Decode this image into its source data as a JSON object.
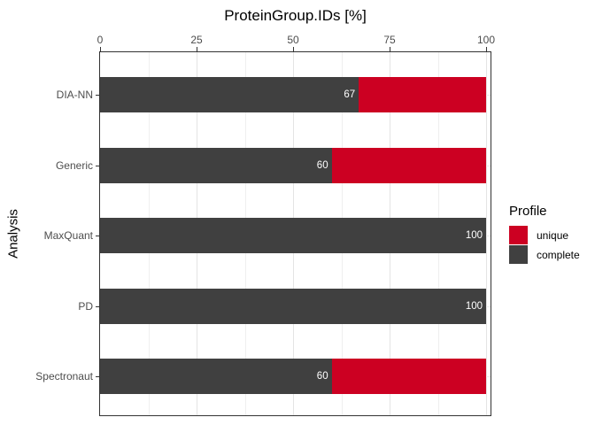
{
  "title": "ProteinGroup.IDs [%]",
  "y_axis_title": "Analysis",
  "legend": {
    "title": "Profile",
    "items": [
      {
        "label": "unique",
        "color": "#CC0022"
      },
      {
        "label": "complete",
        "color": "#404040"
      }
    ]
  },
  "colors": {
    "complete": "#404040",
    "unique": "#CC0022",
    "panel_border": "#333333",
    "axis_text": "#4d4d4d",
    "grid_major": "#e4e4e4",
    "grid_minor": "#efefef",
    "bar_value_text": "#ffffff"
  },
  "chart_data": {
    "type": "bar",
    "orientation": "horizontal",
    "stacked": true,
    "title": "ProteinGroup.IDs [%]",
    "ylabel": "Analysis",
    "legend_title": "Profile",
    "legend_position": "right",
    "x_axis_position": "top",
    "xlim": [
      0,
      100
    ],
    "x_ticks": [
      0,
      25,
      50,
      75,
      100
    ],
    "x_minor_step": 12.5,
    "grid": true,
    "categories": [
      "DIA-NN",
      "Generic",
      "MaxQuant",
      "PD",
      "Spectronaut"
    ],
    "series": [
      {
        "name": "complete",
        "color": "#404040",
        "values": [
          67,
          60,
          100,
          100,
          60
        ]
      },
      {
        "name": "unique",
        "color": "#CC0022",
        "values": [
          33,
          40,
          0,
          0,
          40
        ]
      }
    ],
    "bar_labels": [
      "67",
      "60",
      "100",
      "100",
      "60"
    ]
  }
}
